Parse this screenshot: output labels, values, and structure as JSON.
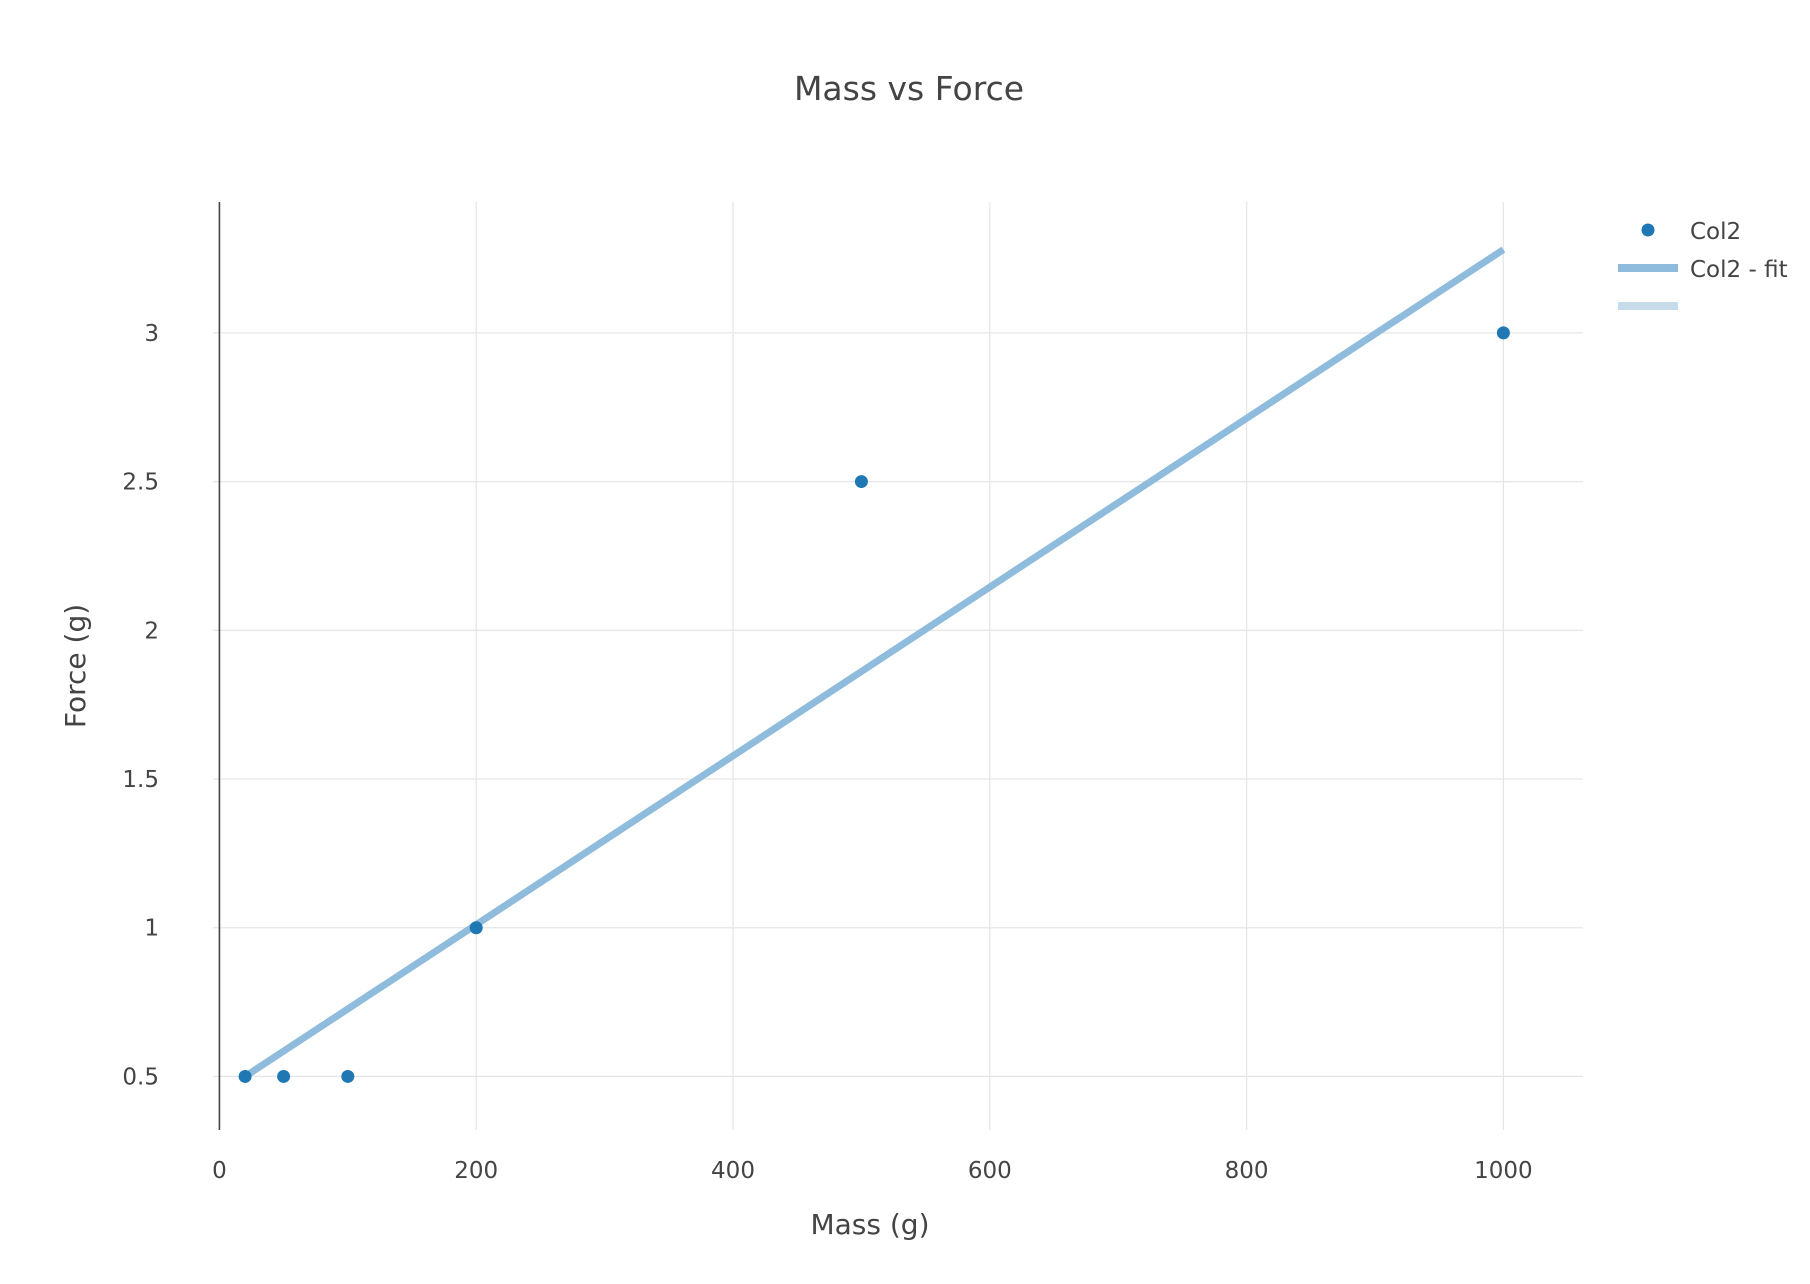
{
  "chart_data": {
    "type": "scatter",
    "title": "Mass vs Force",
    "xlabel": "Mass (g)",
    "ylabel": "Force (g)",
    "xlim": [
      -5,
      1062
    ],
    "ylim": [
      0.32,
      3.44
    ],
    "xticks": [
      0,
      200,
      400,
      600,
      800,
      1000
    ],
    "xtick_labels": [
      "0",
      "200",
      "400",
      "600",
      "800",
      "1000"
    ],
    "yticks": [
      0.5,
      1,
      1.5,
      2,
      2.5,
      3
    ],
    "ytick_labels": [
      "0.5",
      "1",
      "1.5",
      "2",
      "2.5",
      "3"
    ],
    "grid": true,
    "legend_position": "top-right",
    "series": [
      {
        "name": "Col2",
        "mode": "markers",
        "color": "#1f77b4",
        "x": [
          20,
          50,
          100,
          200,
          500,
          1000
        ],
        "y": [
          0.5,
          0.5,
          0.5,
          1,
          2.5,
          3
        ]
      },
      {
        "name": "Col2 - fit",
        "mode": "line",
        "color": "#8fbcdc",
        "x": [
          20,
          1000
        ],
        "y": [
          0.5,
          3.28
        ]
      },
      {
        "name": "",
        "mode": "legend-only",
        "color": "#c6dceb"
      }
    ]
  }
}
